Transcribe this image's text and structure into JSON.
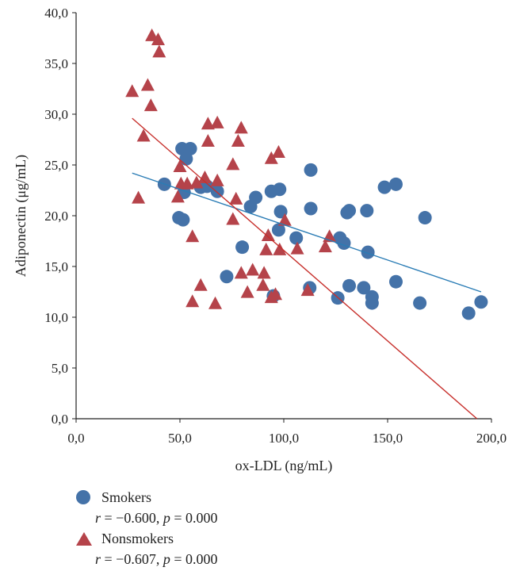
{
  "colors": {
    "smokers": "#4472a8",
    "nonsmokers": "#b5434a",
    "smokers_trend": "#2a7cb5",
    "nonsmokers_trend": "#c7302c",
    "axis": "#222222"
  },
  "legend": {
    "smokers_label": "Smokers",
    "smokers_stat_r": "r",
    "smokers_stat_rest": " = −0.600, ",
    "smokers_stat_p": "p",
    "smokers_stat_p_rest": " = 0.000",
    "nonsmokers_label": "Nonsmokers",
    "nonsmokers_stat_r": "r",
    "nonsmokers_stat_rest": " = −0.607, ",
    "nonsmokers_stat_p": "p",
    "nonsmokers_stat_p_rest": " = 0.000"
  },
  "chart_data": {
    "type": "scatter",
    "title": "",
    "xlabel": "ox-LDL (ng/mL)",
    "ylabel": "Adiponectin (μg/mL)",
    "xlim": [
      0,
      200
    ],
    "ylim": [
      0,
      40
    ],
    "x_ticks": [
      "0,0",
      "50,0",
      "100,0",
      "150,0",
      "200,0"
    ],
    "y_ticks": [
      "0,0",
      "5,0",
      "10,0",
      "15,0",
      "20,0",
      "25,0",
      "30,0",
      "35,0",
      "40,0"
    ],
    "grid": false,
    "legend_position": "bottom-left",
    "series": [
      {
        "name": "Smokers",
        "marker": "circle",
        "points": [
          [
            42.5,
            23.1
          ],
          [
            49.5,
            19.8
          ],
          [
            51.0,
            26.6
          ],
          [
            51.5,
            19.6
          ],
          [
            52.0,
            22.3
          ],
          [
            53.0,
            25.6
          ],
          [
            55.0,
            26.6
          ],
          [
            60.0,
            22.8
          ],
          [
            63.0,
            22.9
          ],
          [
            68.0,
            22.4
          ],
          [
            72.5,
            14.0
          ],
          [
            80.0,
            16.9
          ],
          [
            84.0,
            20.9
          ],
          [
            86.5,
            21.8
          ],
          [
            94.0,
            22.4
          ],
          [
            95.0,
            12.1
          ],
          [
            97.5,
            18.6
          ],
          [
            98.0,
            22.6
          ],
          [
            98.5,
            20.4
          ],
          [
            106.0,
            17.8
          ],
          [
            113.0,
            24.5
          ],
          [
            113.0,
            20.7
          ],
          [
            112.5,
            12.9
          ],
          [
            126.0,
            11.9
          ],
          [
            127.0,
            17.8
          ],
          [
            129.0,
            17.3
          ],
          [
            130.5,
            20.3
          ],
          [
            131.5,
            20.5
          ],
          [
            131.5,
            13.1
          ],
          [
            138.5,
            12.9
          ],
          [
            140.0,
            20.5
          ],
          [
            140.5,
            16.4
          ],
          [
            142.5,
            12.0
          ],
          [
            142.5,
            11.4
          ],
          [
            148.5,
            22.8
          ],
          [
            154.0,
            23.1
          ],
          [
            154.0,
            13.5
          ],
          [
            165.5,
            11.4
          ],
          [
            168.0,
            19.8
          ],
          [
            189.0,
            10.4
          ],
          [
            195.0,
            11.5
          ]
        ],
        "trend": [
          [
            27.0,
            24.2
          ],
          [
            195.0,
            12.5
          ]
        ]
      },
      {
        "name": "Nonsmokers",
        "marker": "triangle",
        "points": [
          [
            27.0,
            32.2
          ],
          [
            30.0,
            21.7
          ],
          [
            32.5,
            27.8
          ],
          [
            34.5,
            32.8
          ],
          [
            36.0,
            30.8
          ],
          [
            36.5,
            37.7
          ],
          [
            39.5,
            37.3
          ],
          [
            40.0,
            36.1
          ],
          [
            49.0,
            21.8
          ],
          [
            50.0,
            24.8
          ],
          [
            50.5,
            23.1
          ],
          [
            53.5,
            23.1
          ],
          [
            56.0,
            11.5
          ],
          [
            56.0,
            17.9
          ],
          [
            58.0,
            23.2
          ],
          [
            60.0,
            13.1
          ],
          [
            62.0,
            23.7
          ],
          [
            63.5,
            29.0
          ],
          [
            63.5,
            27.3
          ],
          [
            67.0,
            11.3
          ],
          [
            68.0,
            29.1
          ],
          [
            68.0,
            23.4
          ],
          [
            75.5,
            19.6
          ],
          [
            75.5,
            25.0
          ],
          [
            77.0,
            21.6
          ],
          [
            78.0,
            27.3
          ],
          [
            79.5,
            28.6
          ],
          [
            79.5,
            14.3
          ],
          [
            82.5,
            12.4
          ],
          [
            85.0,
            14.6
          ],
          [
            90.0,
            13.1
          ],
          [
            90.5,
            14.3
          ],
          [
            91.5,
            16.6
          ],
          [
            92.5,
            18.0
          ],
          [
            94.0,
            11.9
          ],
          [
            94.0,
            25.6
          ],
          [
            96.0,
            12.2
          ],
          [
            97.5,
            26.2
          ],
          [
            98.0,
            16.6
          ],
          [
            100.5,
            19.5
          ],
          [
            106.5,
            16.7
          ],
          [
            111.5,
            12.6
          ],
          [
            120.0,
            16.9
          ],
          [
            122.0,
            17.9
          ]
        ],
        "trend": [
          [
            27.0,
            29.6
          ],
          [
            193.0,
            0.0
          ]
        ]
      }
    ]
  }
}
